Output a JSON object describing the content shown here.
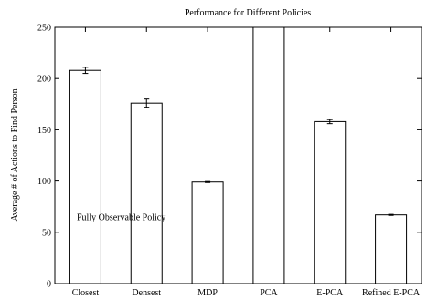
{
  "chart_data": {
    "type": "bar",
    "title": "Performance for Different Policies",
    "xlabel": "",
    "ylabel": "Average # of Actions to Find Person",
    "categories": [
      "Closest",
      "Densest",
      "MDP",
      "PCA",
      "E-PCA",
      "Refined E-PCA"
    ],
    "values": [
      208,
      176,
      99,
      250,
      158,
      67
    ],
    "errors": [
      3,
      4,
      0.5,
      0,
      2,
      0.5
    ],
    "ylim": [
      0,
      250
    ],
    "yticks": [
      0,
      50,
      100,
      150,
      200,
      250
    ],
    "reference_line": {
      "label": "Fully Observable Policy",
      "value": 60
    },
    "grid": false,
    "legend": "none"
  }
}
